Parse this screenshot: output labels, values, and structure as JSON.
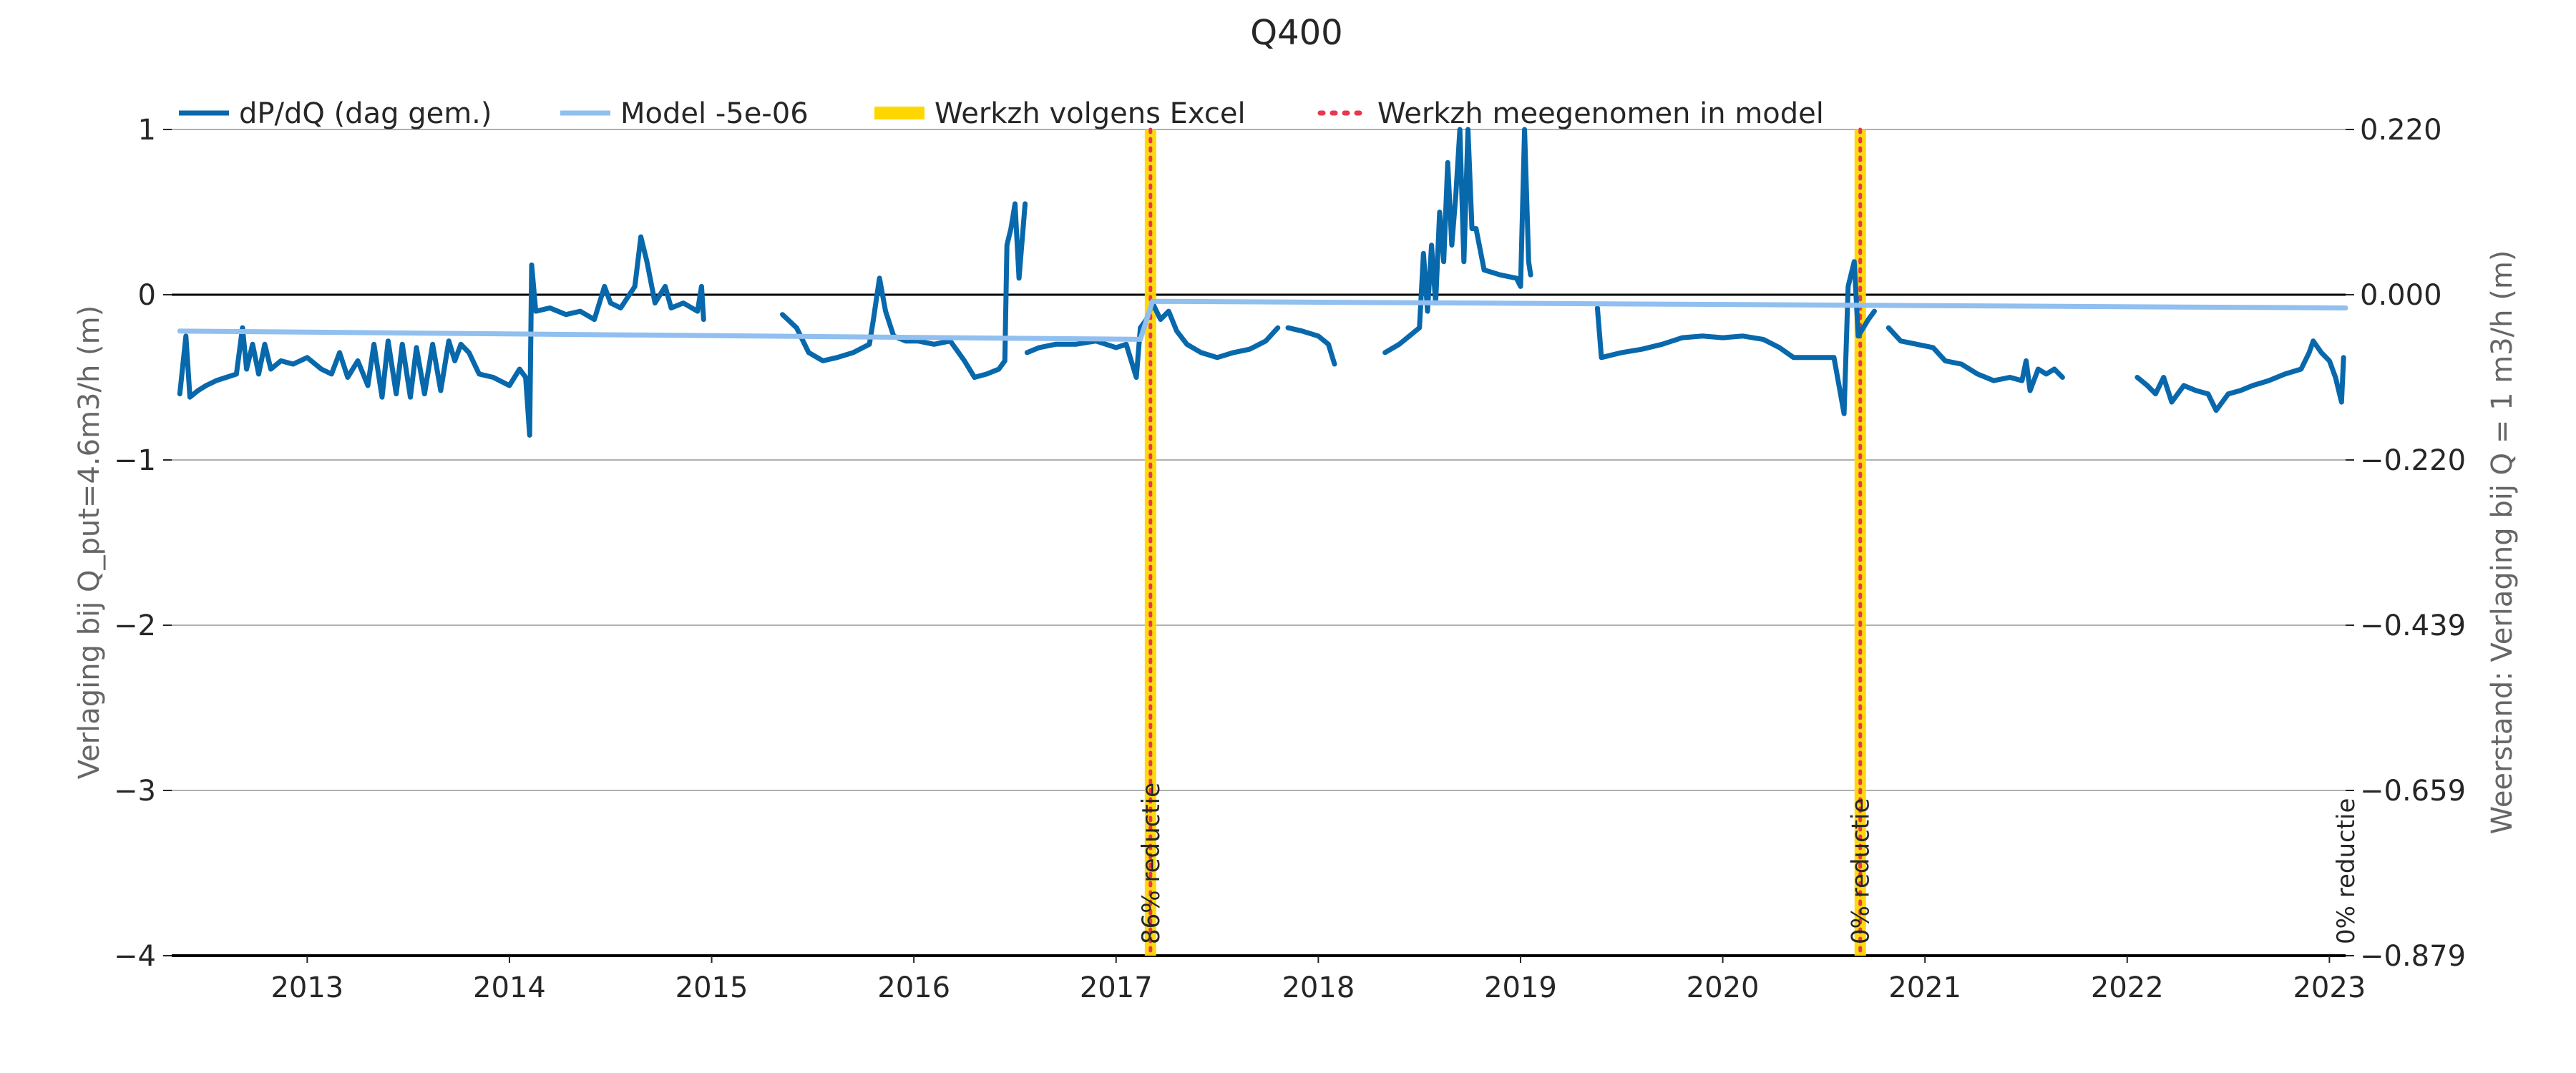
{
  "chart_data": {
    "type": "line",
    "title": "Q400",
    "ylabel_left": "Verlaging bij Q_put=4.6m3/h (m)",
    "ylabel_right": "Weerstand: Verlaging bij Q = 1 m3/h (m)",
    "xlim": [
      2012.33,
      2023.08
    ],
    "ylim": [
      -4,
      1
    ],
    "x_ticks": [
      2013,
      2014,
      2015,
      2016,
      2017,
      2018,
      2019,
      2020,
      2021,
      2022,
      2023
    ],
    "x_tick_labels": [
      "2013",
      "2014",
      "2015",
      "2016",
      "2017",
      "2018",
      "2019",
      "2020",
      "2021",
      "2022",
      "2023"
    ],
    "y_ticks_left": [
      -4,
      -3,
      -2,
      -1,
      0,
      1
    ],
    "y_tick_labels_left": [
      "−4",
      "−3",
      "−2",
      "−1",
      "0",
      "1"
    ],
    "y_ticks_right": [
      -0.879,
      -0.659,
      -0.439,
      -0.22,
      0.0,
      0.22
    ],
    "y_tick_labels_right": [
      "−0.879",
      "−0.659",
      "−0.439",
      "−0.220",
      "0.000",
      "0.220"
    ],
    "grid": "horizontal",
    "legend_placement": "top-left",
    "legend": [
      {
        "label": "dP/dQ (dag gem.)",
        "style": "line",
        "color": "#0868ac"
      },
      {
        "label": "Model -5e-06",
        "style": "line",
        "color": "#91bfef"
      },
      {
        "label": "Werkzh volgens Excel",
        "style": "band",
        "color": "#ffd700"
      },
      {
        "label": "Werkzh meegenomen in model",
        "style": "dotted",
        "color": "#e8384f"
      }
    ],
    "series": [
      {
        "name": "dP/dQ (dag gem.)",
        "color": "#0868ac",
        "segments": [
          [
            [
              2012.37,
              -0.6
            ],
            [
              2012.4,
              -0.25
            ],
            [
              2012.42,
              -0.62
            ],
            [
              2012.46,
              -0.58
            ],
            [
              2012.5,
              -0.55
            ],
            [
              2012.55,
              -0.52
            ],
            [
              2012.6,
              -0.5
            ],
            [
              2012.65,
              -0.48
            ],
            [
              2012.68,
              -0.2
            ],
            [
              2012.7,
              -0.45
            ],
            [
              2012.73,
              -0.3
            ],
            [
              2012.76,
              -0.48
            ],
            [
              2012.79,
              -0.3
            ],
            [
              2012.82,
              -0.45
            ],
            [
              2012.87,
              -0.4
            ],
            [
              2012.93,
              -0.42
            ],
            [
              2013.0,
              -0.38
            ],
            [
              2013.07,
              -0.45
            ],
            [
              2013.12,
              -0.48
            ],
            [
              2013.16,
              -0.35
            ],
            [
              2013.2,
              -0.5
            ],
            [
              2013.25,
              -0.4
            ],
            [
              2013.3,
              -0.55
            ],
            [
              2013.33,
              -0.3
            ],
            [
              2013.37,
              -0.62
            ],
            [
              2013.4,
              -0.28
            ],
            [
              2013.44,
              -0.6
            ],
            [
              2013.47,
              -0.3
            ],
            [
              2013.51,
              -0.62
            ],
            [
              2013.54,
              -0.32
            ],
            [
              2013.58,
              -0.6
            ],
            [
              2013.62,
              -0.3
            ],
            [
              2013.66,
              -0.58
            ],
            [
              2013.7,
              -0.28
            ],
            [
              2013.73,
              -0.4
            ],
            [
              2013.76,
              -0.3
            ],
            [
              2013.8,
              -0.35
            ],
            [
              2013.85,
              -0.48
            ],
            [
              2013.92,
              -0.5
            ],
            [
              2014.0,
              -0.55
            ],
            [
              2014.05,
              -0.45
            ],
            [
              2014.08,
              -0.5
            ],
            [
              2014.1,
              -0.85
            ],
            [
              2014.11,
              0.18
            ],
            [
              2014.13,
              -0.1
            ],
            [
              2014.2,
              -0.08
            ],
            [
              2014.28,
              -0.12
            ],
            [
              2014.35,
              -0.1
            ],
            [
              2014.42,
              -0.15
            ],
            [
              2014.47,
              0.05
            ],
            [
              2014.5,
              -0.05
            ],
            [
              2014.55,
              -0.08
            ],
            [
              2014.62,
              0.05
            ],
            [
              2014.65,
              0.35
            ],
            [
              2014.68,
              0.2
            ],
            [
              2014.72,
              -0.05
            ],
            [
              2014.77,
              0.05
            ],
            [
              2014.8,
              -0.08
            ],
            [
              2014.86,
              -0.05
            ],
            [
              2014.93,
              -0.1
            ],
            [
              2014.95,
              0.05
            ],
            [
              2014.96,
              -0.15
            ]
          ],
          [
            [
              2015.35,
              -0.12
            ],
            [
              2015.42,
              -0.2
            ],
            [
              2015.48,
              -0.35
            ],
            [
              2015.55,
              -0.4
            ],
            [
              2015.62,
              -0.38
            ],
            [
              2015.7,
              -0.35
            ],
            [
              2015.78,
              -0.3
            ],
            [
              2015.8,
              -0.15
            ],
            [
              2015.83,
              0.1
            ],
            [
              2015.86,
              -0.1
            ],
            [
              2015.9,
              -0.25
            ],
            [
              2015.96,
              -0.28
            ],
            [
              2016.02,
              -0.28
            ],
            [
              2016.1,
              -0.3
            ],
            [
              2016.18,
              -0.28
            ],
            [
              2016.25,
              -0.4
            ],
            [
              2016.3,
              -0.5
            ],
            [
              2016.36,
              -0.48
            ],
            [
              2016.42,
              -0.45
            ],
            [
              2016.45,
              -0.4
            ],
            [
              2016.46,
              0.3
            ],
            [
              2016.48,
              0.4
            ],
            [
              2016.5,
              0.55
            ],
            [
              2016.52,
              0.1
            ],
            [
              2016.55,
              0.55
            ]
          ],
          [
            [
              2016.56,
              -0.35
            ],
            [
              2016.62,
              -0.32
            ],
            [
              2016.7,
              -0.3
            ],
            [
              2016.8,
              -0.3
            ],
            [
              2016.9,
              -0.28
            ],
            [
              2017.0,
              -0.32
            ],
            [
              2017.05,
              -0.3
            ],
            [
              2017.1,
              -0.5
            ],
            [
              2017.12,
              -0.2
            ],
            [
              2017.15,
              -0.15
            ],
            [
              2017.18,
              -0.05
            ],
            [
              2017.22,
              -0.15
            ],
            [
              2017.26,
              -0.1
            ],
            [
              2017.3,
              -0.22
            ],
            [
              2017.35,
              -0.3
            ],
            [
              2017.42,
              -0.35
            ],
            [
              2017.5,
              -0.38
            ],
            [
              2017.58,
              -0.35
            ],
            [
              2017.66,
              -0.33
            ],
            [
              2017.74,
              -0.28
            ],
            [
              2017.8,
              -0.2
            ]
          ],
          [
            [
              2017.85,
              -0.2
            ],
            [
              2017.92,
              -0.22
            ],
            [
              2018.0,
              -0.25
            ],
            [
              2018.05,
              -0.3
            ],
            [
              2018.08,
              -0.42
            ]
          ],
          [
            [
              2018.33,
              -0.35
            ],
            [
              2018.4,
              -0.3
            ],
            [
              2018.45,
              -0.25
            ],
            [
              2018.5,
              -0.2
            ],
            [
              2018.52,
              0.25
            ],
            [
              2018.54,
              -0.1
            ],
            [
              2018.56,
              0.3
            ],
            [
              2018.58,
              -0.05
            ],
            [
              2018.6,
              0.5
            ],
            [
              2018.62,
              0.2
            ],
            [
              2018.64,
              0.8
            ],
            [
              2018.66,
              0.3
            ],
            [
              2018.68,
              0.6
            ],
            [
              2018.7,
              1.0
            ],
            [
              2018.72,
              0.2
            ],
            [
              2018.74,
              1.0
            ],
            [
              2018.76,
              0.4
            ],
            [
              2018.78,
              0.4
            ],
            [
              2018.82,
              0.15
            ],
            [
              2018.9,
              0.12
            ],
            [
              2018.98,
              0.1
            ],
            [
              2019.0,
              0.05
            ],
            [
              2019.02,
              1.0
            ],
            [
              2019.04,
              0.2
            ],
            [
              2019.05,
              0.12
            ]
          ],
          [
            [
              2019.38,
              -0.08
            ],
            [
              2019.4,
              -0.38
            ],
            [
              2019.5,
              -0.35
            ],
            [
              2019.6,
              -0.33
            ],
            [
              2019.7,
              -0.3
            ],
            [
              2019.8,
              -0.26
            ],
            [
              2019.9,
              -0.25
            ],
            [
              2020.0,
              -0.26
            ],
            [
              2020.1,
              -0.25
            ],
            [
              2020.2,
              -0.27
            ],
            [
              2020.28,
              -0.32
            ],
            [
              2020.35,
              -0.38
            ],
            [
              2020.45,
              -0.38
            ],
            [
              2020.55,
              -0.38
            ],
            [
              2020.6,
              -0.72
            ],
            [
              2020.62,
              0.05
            ],
            [
              2020.65,
              0.2
            ],
            [
              2020.67,
              -0.25
            ],
            [
              2020.72,
              -0.15
            ],
            [
              2020.75,
              -0.1
            ]
          ],
          [
            [
              2020.82,
              -0.2
            ],
            [
              2020.88,
              -0.28
            ],
            [
              2020.96,
              -0.3
            ],
            [
              2021.04,
              -0.32
            ],
            [
              2021.1,
              -0.4
            ],
            [
              2021.18,
              -0.42
            ],
            [
              2021.26,
              -0.48
            ],
            [
              2021.34,
              -0.52
            ],
            [
              2021.42,
              -0.5
            ],
            [
              2021.48,
              -0.52
            ],
            [
              2021.5,
              -0.4
            ],
            [
              2021.52,
              -0.58
            ],
            [
              2021.56,
              -0.45
            ],
            [
              2021.6,
              -0.48
            ],
            [
              2021.64,
              -0.45
            ],
            [
              2021.68,
              -0.5
            ]
          ],
          [
            [
              2022.05,
              -0.5
            ],
            [
              2022.1,
              -0.55
            ],
            [
              2022.14,
              -0.6
            ],
            [
              2022.18,
              -0.5
            ],
            [
              2022.22,
              -0.65
            ],
            [
              2022.28,
              -0.55
            ],
            [
              2022.34,
              -0.58
            ],
            [
              2022.4,
              -0.6
            ],
            [
              2022.44,
              -0.7
            ],
            [
              2022.5,
              -0.6
            ],
            [
              2022.56,
              -0.58
            ],
            [
              2022.62,
              -0.55
            ],
            [
              2022.7,
              -0.52
            ],
            [
              2022.78,
              -0.48
            ],
            [
              2022.86,
              -0.45
            ],
            [
              2022.9,
              -0.35
            ],
            [
              2022.92,
              -0.28
            ],
            [
              2022.96,
              -0.35
            ],
            [
              2023.0,
              -0.4
            ],
            [
              2023.03,
              -0.5
            ],
            [
              2023.06,
              -0.65
            ],
            [
              2023.07,
              -0.38
            ]
          ]
        ]
      },
      {
        "name": "Model -5e-06",
        "color": "#91bfef",
        "segments": [
          [
            [
              2012.37,
              -0.22
            ],
            [
              2017.12,
              -0.27
            ]
          ],
          [
            [
              2017.12,
              -0.27
            ],
            [
              2017.18,
              -0.04
            ],
            [
              2023.08,
              -0.08
            ]
          ]
        ]
      }
    ],
    "bands": [
      {
        "x": 2017.17,
        "label": "86% reductie",
        "color": "#ffd700"
      },
      {
        "x": 2020.68,
        "label": "0% reductie",
        "color": "#ffd700"
      }
    ],
    "end_annotation": {
      "x": 2023.08,
      "label": "0% reductie"
    }
  }
}
